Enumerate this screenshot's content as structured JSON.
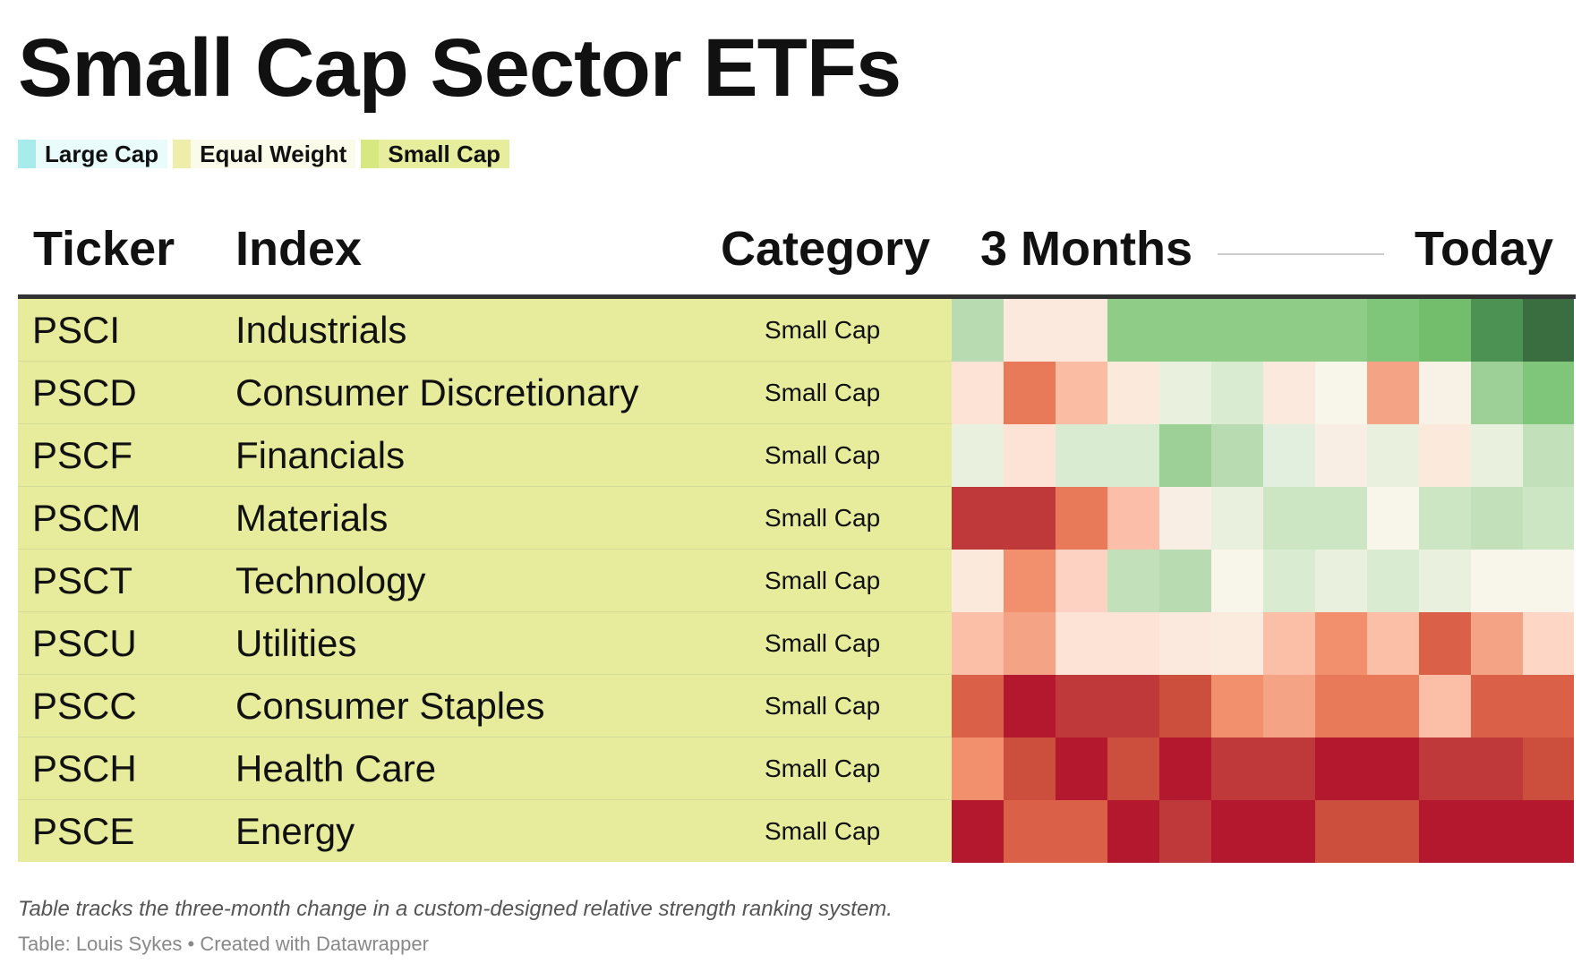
{
  "title": "Small Cap Sector ETFs",
  "legend": [
    {
      "label": "Large Cap",
      "color": "#a8ebeb",
      "bg": "#e9fbfb"
    },
    {
      "label": "Equal Weight",
      "color": "#eeeeaa",
      "bg": "#fbfbea"
    },
    {
      "label": "Small Cap",
      "color": "#d8e880",
      "bg": "#e6ee9e"
    }
  ],
  "headers": {
    "ticker": "Ticker",
    "index": "Index",
    "category": "Category",
    "start": "3 Months",
    "end": "Today"
  },
  "row_color": "#e6ec9c",
  "chart_data": {
    "type": "heatmap",
    "title": "Small Cap Sector ETFs",
    "x_start_label": "3 Months",
    "x_end_label": "Today",
    "rows": [
      {
        "ticker": "PSCI",
        "index": "Industrials",
        "category": "Small Cap",
        "cells": [
          "#b8dbb2",
          "#fbe9de",
          "#fbe9de",
          "#8ecc88",
          "#8ecc88",
          "#8ecc88",
          "#8ecc88",
          "#8ecc88",
          "#7fc57a",
          "#72be6c",
          "#4c9252",
          "#3a6d40"
        ]
      },
      {
        "ticker": "PSCD",
        "index": "Consumer Discretionary",
        "category": "Small Cap",
        "cells": [
          "#fde2d6",
          "#e87a5a",
          "#fbbca4",
          "#fbe9dc",
          "#e9f0de",
          "#d9ebd0",
          "#fbe9de",
          "#f8f6ea",
          "#f4a384",
          "#f8f2e6",
          "#9dd096",
          "#7fc57a"
        ]
      },
      {
        "ticker": "PSCF",
        "index": "Financials",
        "category": "Small Cap",
        "cells": [
          "#e9f0de",
          "#fde2d6",
          "#d9ebd0",
          "#d9ebd0",
          "#9dd096",
          "#b8dbb2",
          "#e3efde",
          "#f8eee4",
          "#e9f0de",
          "#fbe9dc",
          "#e9f0de",
          "#c2e0b9"
        ]
      },
      {
        "ticker": "PSCM",
        "index": "Materials",
        "category": "Small Cap",
        "cells": [
          "#c0393a",
          "#c0393a",
          "#e87a5a",
          "#fbbea8",
          "#f8eee4",
          "#e9f0de",
          "#cce6c4",
          "#cce6c4",
          "#f8f6ea",
          "#cce6c4",
          "#c2e0b9",
          "#cce6c4"
        ]
      },
      {
        "ticker": "PSCT",
        "index": "Technology",
        "category": "Small Cap",
        "cells": [
          "#fbe9dc",
          "#f28f6c",
          "#fdd2c2",
          "#c2e0b9",
          "#b8dbb2",
          "#f8f6ea",
          "#d9ebd0",
          "#e9f0de",
          "#d9ebd0",
          "#e9f0de",
          "#f8f6ea",
          "#f8f6ea"
        ]
      },
      {
        "ticker": "PSCU",
        "index": "Utilities",
        "category": "Small Cap",
        "cells": [
          "#fbbea6",
          "#f4a384",
          "#fde2d6",
          "#fde2d6",
          "#fbe9de",
          "#fbeade",
          "#fbbea6",
          "#f28f6c",
          "#fbbea6",
          "#db6048",
          "#f4a384",
          "#fdd6c6"
        ]
      },
      {
        "ticker": "PSCC",
        "index": "Consumer Staples",
        "category": "Small Cap",
        "cells": [
          "#db6048",
          "#b3182e",
          "#c0393a",
          "#c0393a",
          "#cc4e3c",
          "#f28f6c",
          "#f4a384",
          "#e87a5a",
          "#e87a5a",
          "#fbbea6",
          "#db6048",
          "#db6048"
        ]
      },
      {
        "ticker": "PSCH",
        "index": "Health Care",
        "category": "Small Cap",
        "cells": [
          "#f28f6c",
          "#cc4e3c",
          "#b3182e",
          "#cc4e3c",
          "#b3182e",
          "#c0393a",
          "#c0393a",
          "#b3182e",
          "#b3182e",
          "#c0393a",
          "#c0393a",
          "#cc4e3c"
        ]
      },
      {
        "ticker": "PSCE",
        "index": "Energy",
        "category": "Small Cap",
        "cells": [
          "#b3182e",
          "#db6048",
          "#db6048",
          "#b3182e",
          "#c0393a",
          "#b3182e",
          "#b3182e",
          "#cc4e3c",
          "#cc4e3c",
          "#b3182e",
          "#b3182e",
          "#b3182e"
        ]
      }
    ]
  },
  "note": "Table tracks the three-month change in a custom-designed relative strength ranking system.",
  "source": "Table: Louis Sykes • Created with Datawrapper"
}
